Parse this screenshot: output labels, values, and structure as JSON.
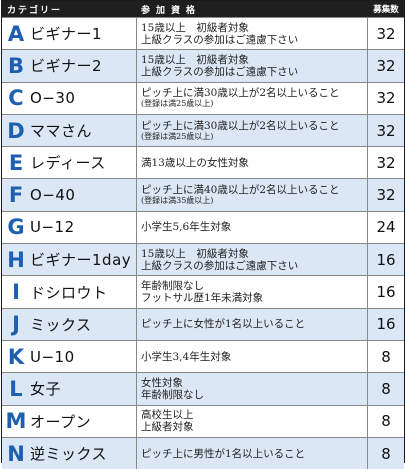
{
  "header": {
    "category": "カテゴリー",
    "requirement": "参加資格",
    "count": "募集数"
  },
  "rows": [
    {
      "letter": "A",
      "category": "ビギナー1",
      "req1": "15歳以上　初級者対象",
      "req2": "上級クラスの参加はご遠慮下さい",
      "count": "32"
    },
    {
      "letter": "B",
      "category": "ビギナー2",
      "req1": "15歳以上　初級者対象",
      "req2": "上級クラスの参加はご遠慮下さい",
      "count": "32"
    },
    {
      "letter": "C",
      "category": "O−30",
      "req1": "ピッチ上に満30歳以上が2名以上いること",
      "req2": "(登録は満25歳以上)",
      "count": "32"
    },
    {
      "letter": "D",
      "category": "ママさん",
      "req1": "ピッチ上に満30歳以上が2名以上いること",
      "req2": "(登録は満25歳以上)",
      "count": "32"
    },
    {
      "letter": "E",
      "category": "レディース",
      "req1": "満13歳以上の女性対象",
      "req2": "",
      "count": "32"
    },
    {
      "letter": "F",
      "category": "O−40",
      "req1": "ピッチ上に満40歳以上が2名以上いること",
      "req2": "(登録は満35歳以上)",
      "count": "32"
    },
    {
      "letter": "G",
      "category": "U−12",
      "req1": "小学生5,6年生対象",
      "req2": "",
      "count": "24"
    },
    {
      "letter": "H",
      "category": "ビギナー1day",
      "req1": "15歳以上　初級者対象",
      "req2": "上級クラスの参加はご遠慮下さい",
      "count": "16"
    },
    {
      "letter": "I",
      "category": "ドシロウト",
      "req1": "年齢制限なし",
      "req2": "フットサル歴1年未満対象",
      "count": "16"
    },
    {
      "letter": "J",
      "category": "ミックス",
      "req1": "ピッチ上に女性が1名以上いること",
      "req2": "",
      "count": "16"
    },
    {
      "letter": "K",
      "category": "U−10",
      "req1": "小学生3,4年生対象",
      "req2": "",
      "count": "8"
    },
    {
      "letter": "L",
      "category": "女子",
      "req1": "女性対象",
      "req2": "年齢制限なし",
      "count": "8"
    },
    {
      "letter": "M",
      "category": "オープン",
      "req1": "高校生以上",
      "req2": "上級者対象",
      "count": "8"
    },
    {
      "letter": "N",
      "category": "逆ミックス",
      "req1": "ピッチ上に男性が1名以上いること",
      "req2": "",
      "count": "8"
    }
  ]
}
